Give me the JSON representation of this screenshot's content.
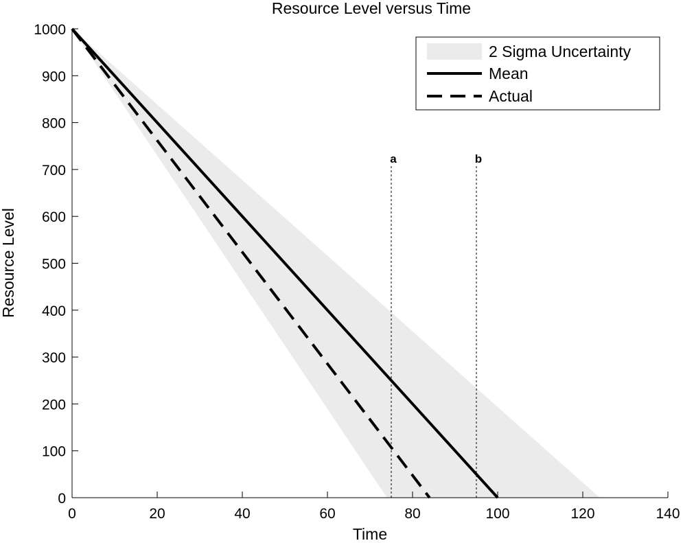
{
  "chart_data": {
    "type": "line",
    "title": "Resource Level versus Time",
    "xlabel": "Time",
    "ylabel": "Resource Level",
    "xlim": [
      0,
      140
    ],
    "ylim": [
      0,
      1000
    ],
    "xticks": [
      "0",
      "20",
      "40",
      "60",
      "80",
      "100",
      "120",
      "140"
    ],
    "yticks": [
      "0",
      "100",
      "200",
      "300",
      "400",
      "500",
      "600",
      "700",
      "800",
      "900",
      "1000"
    ],
    "grid": false,
    "legend_position": "top-right",
    "band": {
      "name": "2 Sigma Uncertainty",
      "color": "#ebebeb",
      "upper": [
        [
          0,
          1000
        ],
        [
          124,
          0
        ]
      ],
      "lower": [
        [
          0,
          1000
        ],
        [
          74,
          0
        ]
      ]
    },
    "series": [
      {
        "name": "Mean",
        "style": "solid",
        "color": "#000000",
        "x": [
          0,
          100
        ],
        "y": [
          1000,
          0
        ]
      },
      {
        "name": "Actual",
        "style": "dashed",
        "color": "#000000",
        "x": [
          0,
          84
        ],
        "y": [
          1000,
          0
        ]
      }
    ],
    "markers": [
      {
        "label": "a",
        "x": 75
      },
      {
        "label": "b",
        "x": 95
      }
    ]
  }
}
